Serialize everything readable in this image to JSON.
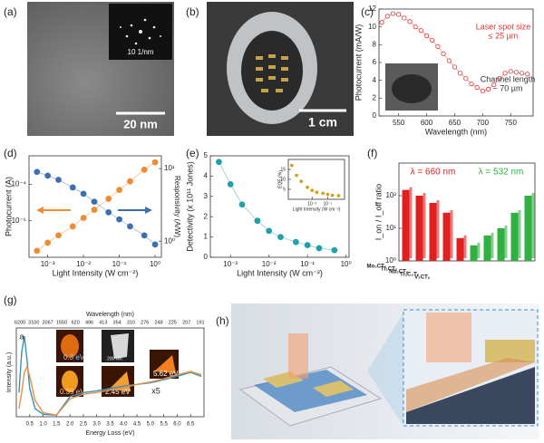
{
  "images": [
    {
      "label": "(a)",
      "scale": "20 nm",
      "inset": "10 1/nm"
    },
    {
      "label": "(b)",
      "scale": "1 cm"
    },
    {
      "label": "(h)"
    }
  ],
  "chart_data": [
    {
      "label": "(c)",
      "type": "line",
      "markers": true,
      "xlabel": "Wavelength (nm)",
      "ylabel": "Photocurrent (mA/W)",
      "x": [
        520,
        530,
        540,
        550,
        560,
        570,
        580,
        590,
        600,
        610,
        620,
        630,
        640,
        650,
        660,
        670,
        680,
        690,
        700,
        710,
        720,
        730,
        740,
        750,
        760,
        770,
        780
      ],
      "series": [
        {
          "color": "#e03030",
          "values": [
            10.5,
            11.2,
            11.5,
            11.4,
            11,
            10.6,
            10,
            9.6,
            9,
            8.5,
            7.8,
            7,
            6.2,
            5.5,
            4.8,
            4.2,
            3.6,
            3.2,
            2.8,
            3.0,
            3.5,
            4.2,
            4.8,
            5.0,
            4.9,
            4.8,
            4.7
          ]
        }
      ],
      "xlim": [
        515,
        790
      ],
      "xticks": [
        550,
        600,
        650,
        700,
        750
      ],
      "ylim": [
        0,
        12
      ],
      "yticks": [
        0,
        2,
        4,
        6,
        8,
        10,
        12
      ],
      "annotations": [
        "Laser spot size",
        "≤ 25 µm",
        "Channel length",
        "~ 70 µm"
      ]
    },
    {
      "label": "(d)",
      "type": "line",
      "markers": true,
      "xlog": true,
      "ylog": true,
      "y2log": true,
      "xlabel": "Light Intensity (W cm⁻²)",
      "ylabel": "Photocurrent (A)",
      "y2label": "Responsivity (A/W)",
      "x": [
        0.0005,
        0.001,
        0.002,
        0.005,
        0.01,
        0.02,
        0.05,
        0.1,
        0.2,
        0.5,
        1
      ],
      "series": [
        {
          "color": "#f08c30",
          "values": [
            1.5e-06,
            2.5e-06,
            4e-06,
            7e-06,
            1.2e-05,
            2e-05,
            4e-05,
            7e-05,
            0.00012,
            0.00025,
            0.0004
          ]
        },
        {
          "color": "#3c6fb0",
          "axis": "y2",
          "values": [
            9,
            8,
            7,
            5.5,
            4.5,
            3.5,
            2.5,
            2,
            1.6,
            1.2,
            0.9
          ]
        }
      ],
      "xlim": [
        0.0003,
        1.5
      ],
      "xticks": [
        {
          "value": 0.001,
          "label": "10⁻³"
        },
        {
          "value": 0.01,
          "label": "10⁻²"
        },
        {
          "value": 0.1,
          "label": "10⁻¹"
        },
        {
          "value": 1,
          "label": "10⁰"
        }
      ],
      "ylim": [
        1e-06,
        0.0006
      ],
      "yticks": [
        {
          "value": 1e-05,
          "label": "10⁻⁵"
        },
        {
          "value": 0.0001,
          "label": "10⁻⁴"
        }
      ],
      "y2lim": [
        0.6,
        15
      ],
      "y2ticks": [
        {
          "value": 1,
          "label": "10⁰"
        },
        {
          "value": 10,
          "label": "10¹"
        }
      ]
    },
    {
      "label": "(e)",
      "type": "line",
      "markers": true,
      "xlog": true,
      "xlabel": "Light Intensity (W cm⁻²)",
      "ylabel": "Detectivity (x 10¹¹ Jones)",
      "x": [
        0.0005,
        0.001,
        0.002,
        0.005,
        0.01,
        0.02,
        0.05,
        0.1,
        0.2,
        0.5
      ],
      "series": [
        {
          "color": "#20a0a8",
          "values": [
            4.7,
            3.6,
            2.6,
            1.8,
            1.3,
            1.0,
            0.75,
            0.6,
            0.45,
            0.35
          ]
        }
      ],
      "xlim": [
        0.0003,
        1.2
      ],
      "xticks": [
        {
          "value": 0.001,
          "label": "10⁻³"
        },
        {
          "value": 0.01,
          "label": "10⁻²"
        },
        {
          "value": 0.1,
          "label": "10⁻¹"
        },
        {
          "value": 1,
          "label": "10⁰"
        }
      ],
      "ylim": [
        0,
        5
      ],
      "yticks": [
        0,
        1,
        2,
        3,
        4,
        5
      ]
    },
    {
      "type": "scatter",
      "xlog": true,
      "xlabel": "Light Intensity (W cm⁻²)",
      "ylabel": "EQE (%)",
      "x": [
        0.0005,
        0.001,
        0.002,
        0.005,
        0.01,
        0.02,
        0.05,
        0.1,
        0.2,
        0.5
      ],
      "series": [
        {
          "color": "#d4a020",
          "values": [
            17,
            12,
            9,
            6,
            4.5,
            3.5,
            3,
            2.5,
            2,
            1.8
          ]
        }
      ],
      "xlim": [
        0.0003,
        1.2
      ],
      "xticks": [
        {
          "value": 0.01,
          "label": "10⁻²"
        },
        {
          "value": 0.1,
          "label": "10⁻¹"
        }
      ],
      "ylim": [
        0,
        20
      ],
      "yticks": [
        5,
        10,
        15
      ]
    },
    {
      "label": "(f)",
      "type": "bar",
      "ylog": true,
      "ylabel": "I_on / I_off ratio",
      "categories": [
        "Mo₂CTₓ",
        "Ti₂CTₓ",
        "Nb₂CTₓ",
        "Ti₃C₂Tₓ",
        "V₂CTₓ"
      ],
      "series": [
        {
          "name": "λ = 660 nm",
          "color": "#e02020",
          "values": [
            150,
            100,
            60,
            30,
            5
          ]
        },
        {
          "name": "λ = 532 nm",
          "color": "#30b040",
          "values": [
            3,
            6,
            10,
            30,
            100
          ]
        }
      ],
      "ylim": [
        1,
        1000
      ],
      "yticks": [
        {
          "value": 1,
          "label": "10⁰"
        },
        {
          "value": 10,
          "label": "10¹"
        },
        {
          "value": 100,
          "label": "10²"
        }
      ]
    },
    {
      "label": "(g)",
      "type": "line",
      "xlabel": "Energy Loss (eV)",
      "ylabel": "Intensity (a.u.)",
      "top_title": "Wavelength (nm)",
      "top_labels": [
        "6200",
        "3100",
        "2067",
        "1550",
        "620",
        "496",
        "413",
        "354",
        "310",
        "276",
        "248",
        "225",
        "207",
        "191"
      ],
      "x": [
        0.1,
        0.2,
        0.3,
        0.4,
        0.5,
        0.7,
        1.0,
        1.5,
        2.0,
        2.5,
        3.0,
        3.5,
        4.0,
        4.5,
        5.0,
        5.5,
        6.0,
        6.5,
        6.9
      ],
      "series": [
        {
          "color": "#3a8fb8",
          "values": [
            0.3,
            0.8,
            1.0,
            0.7,
            0.35,
            0.1,
            0.03,
            0.02,
            0.25,
            0.3,
            0.32,
            0.35,
            0.38,
            0.4,
            0.42,
            0.46,
            0.5,
            0.55,
            0.5
          ]
        },
        {
          "color": "#e8904a",
          "values": [
            0.1,
            0.3,
            0.55,
            0.62,
            0.5,
            0.2,
            0.05,
            0.02,
            0.22,
            0.28,
            0.3,
            0.33,
            0.36,
            0.4,
            0.43,
            0.47,
            0.52,
            0.56,
            0.52
          ]
        }
      ],
      "xlim": [
        0,
        7
      ],
      "xticks": [
        0.5,
        {
          "value": 1,
          "label": "1.0"
        },
        1.5,
        {
          "value": 2,
          "label": "2.0"
        },
        2.5,
        {
          "value": 3,
          "label": "3.0"
        },
        3.5,
        {
          "value": 4,
          "label": "4.0"
        },
        4.5,
        {
          "value": 5,
          "label": "5.0"
        },
        5.5,
        {
          "value": 6,
          "label": "6.0"
        },
        6.5
      ],
      "ylim": [
        0,
        1.1
      ],
      "annotations": [
        "a",
        "x5"
      ],
      "image_labels": [
        "0.3 eV",
        "0.39 eV",
        "200 nm",
        "2.45 eV",
        "5.62 eV"
      ]
    }
  ]
}
